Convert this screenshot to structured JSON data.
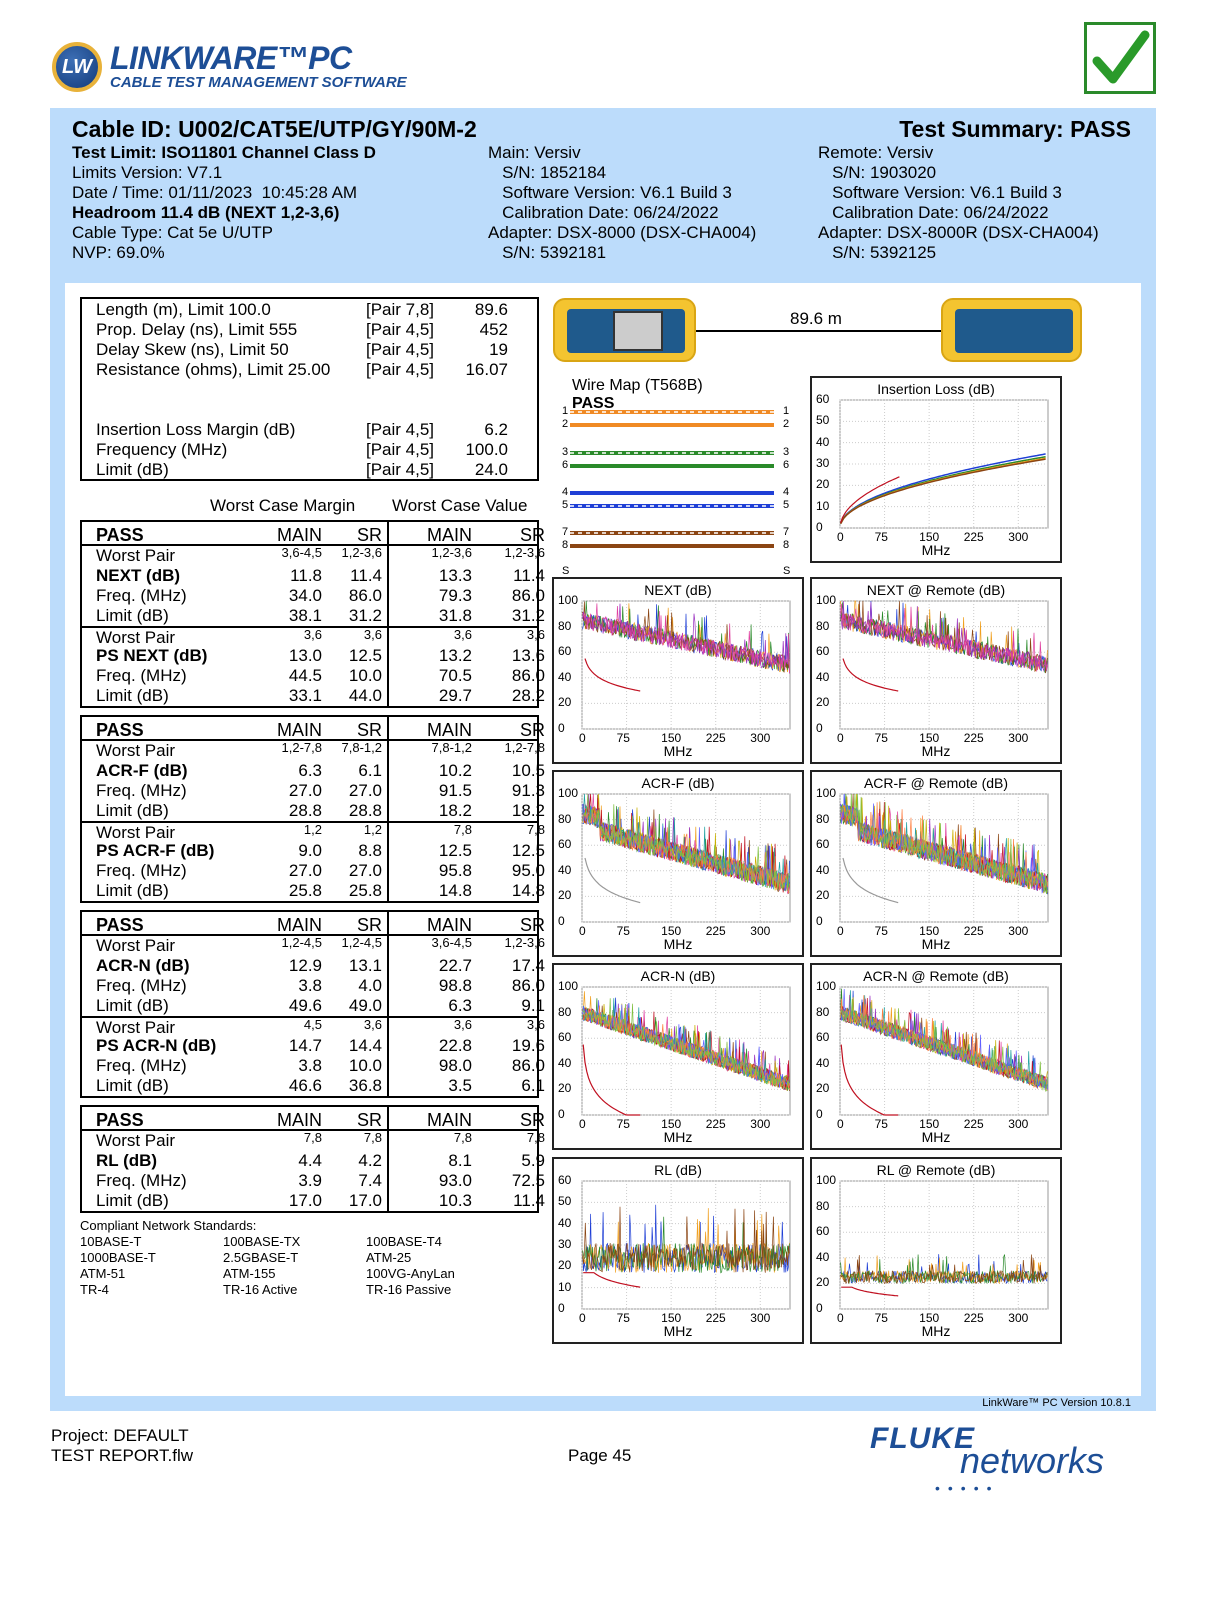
{
  "header": {
    "logo_mark": "LW",
    "logo_title": "LINKWARE™PC",
    "logo_subtitle": "CABLE TEST MANAGEMENT SOFTWARE",
    "status_icon": "check-mark-icon",
    "status_color": "#2a8a2a"
  },
  "summary": {
    "cable_id": "Cable ID: U002/CAT5E/UTP/GY/90M-2",
    "test_summary": "Test Summary: PASS",
    "left": [
      "Test Limit: ISO11801 Channel Class D",
      "Limits Version: V7.1",
      "Date / Time: 01/11/2023  10:45:28 AM",
      "Headroom 11.4 dB (NEXT 1,2-3,6)",
      "Cable Type: Cat 5e U/UTP",
      "NVP: 69.0%"
    ],
    "main": [
      "Main: Versiv",
      "   S/N: 1852184",
      "   Software Version: V6.1 Build 3",
      "   Calibration Date: 06/24/2022",
      "Adapter: DSX-8000 (DSX-CHA004)",
      "   S/N: 5392181"
    ],
    "remote": [
      "Remote: Versiv",
      "   S/N: 1903020",
      "   Software Version: V6.1 Build 3",
      "   Calibration Date: 06/24/2022",
      "Adapter: DSX-8000R (DSX-CHA004)",
      "   S/N: 5392125"
    ]
  },
  "measurements": [
    {
      "label": "Length (m), Limit 100.0",
      "pair": "[Pair 7,8]",
      "value": "89.6"
    },
    {
      "label": "Prop. Delay (ns), Limit 555",
      "pair": "[Pair 4,5]",
      "value": "452"
    },
    {
      "label": "Delay Skew (ns), Limit 50",
      "pair": "[Pair 4,5]",
      "value": "19"
    },
    {
      "label": "Resistance (ohms), Limit 25.00",
      "pair": "[Pair 4,5]",
      "value": "16.07"
    },
    {
      "label": "Insertion Loss Margin (dB)",
      "pair": "[Pair 4,5]",
      "value": "6.2"
    },
    {
      "label": "Frequency (MHz)",
      "pair": "[Pair 4,5]",
      "value": "100.0"
    },
    {
      "label": "Limit (dB)",
      "pair": "[Pair 4,5]",
      "value": "24.0"
    }
  ],
  "table_headings": {
    "margin": "Worst Case Margin",
    "value": "Worst Case Value"
  },
  "tables": [
    {
      "status": "PASS",
      "cols": [
        "MAIN",
        "SR",
        "MAIN",
        "SR"
      ],
      "groups": [
        {
          "rows": [
            [
              "Worst Pair",
              "3,6-4,5",
              "1,2-3,6",
              "1,2-3,6",
              "1,2-3,6"
            ],
            [
              "NEXT (dB)",
              "11.8",
              "11.4",
              "13.3",
              "11.4"
            ],
            [
              "Freq. (MHz)",
              "34.0",
              "86.0",
              "79.3",
              "86.0"
            ],
            [
              "Limit (dB)",
              "38.1",
              "31.2",
              "31.8",
              "31.2"
            ]
          ]
        },
        {
          "rows": [
            [
              "Worst Pair",
              "3,6",
              "3,6",
              "3,6",
              "3,6"
            ],
            [
              "PS NEXT (dB)",
              "13.0",
              "12.5",
              "13.2",
              "13.6"
            ],
            [
              "Freq. (MHz)",
              "44.5",
              "10.0",
              "70.5",
              "86.0"
            ],
            [
              "Limit (dB)",
              "33.1",
              "44.0",
              "29.7",
              "28.2"
            ]
          ]
        }
      ]
    },
    {
      "status": "PASS",
      "cols": [
        "MAIN",
        "SR",
        "MAIN",
        "SR"
      ],
      "groups": [
        {
          "rows": [
            [
              "Worst Pair",
              "1,2-7,8",
              "7,8-1,2",
              "7,8-1,2",
              "1,2-7,8"
            ],
            [
              "ACR-F (dB)",
              "6.3",
              "6.1",
              "10.2",
              "10.5"
            ],
            [
              "Freq. (MHz)",
              "27.0",
              "27.0",
              "91.5",
              "91.3"
            ],
            [
              "Limit (dB)",
              "28.8",
              "28.8",
              "18.2",
              "18.2"
            ]
          ]
        },
        {
          "rows": [
            [
              "Worst Pair",
              "1,2",
              "1,2",
              "7,8",
              "7,8"
            ],
            [
              "PS ACR-F (dB)",
              "9.0",
              "8.8",
              "12.5",
              "12.5"
            ],
            [
              "Freq. (MHz)",
              "27.0",
              "27.0",
              "95.8",
              "95.0"
            ],
            [
              "Limit (dB)",
              "25.8",
              "25.8",
              "14.8",
              "14.8"
            ]
          ]
        }
      ]
    },
    {
      "status": "PASS",
      "cols": [
        "MAIN",
        "SR",
        "MAIN",
        "SR"
      ],
      "groups": [
        {
          "rows": [
            [
              "Worst Pair",
              "1,2-4,5",
              "1,2-4,5",
              "3,6-4,5",
              "1,2-3,6"
            ],
            [
              "ACR-N (dB)",
              "12.9",
              "13.1",
              "22.7",
              "17.4"
            ],
            [
              "Freq. (MHz)",
              "3.8",
              "4.0",
              "98.8",
              "86.0"
            ],
            [
              "Limit (dB)",
              "49.6",
              "49.0",
              "6.3",
              "9.1"
            ]
          ]
        },
        {
          "rows": [
            [
              "Worst Pair",
              "4,5",
              "3,6",
              "3,6",
              "3,6"
            ],
            [
              "PS ACR-N (dB)",
              "14.7",
              "14.4",
              "22.8",
              "19.6"
            ],
            [
              "Freq. (MHz)",
              "3.8",
              "10.0",
              "98.0",
              "86.0"
            ],
            [
              "Limit (dB)",
              "46.6",
              "36.8",
              "3.5",
              "6.1"
            ]
          ]
        }
      ]
    },
    {
      "status": "PASS",
      "cols": [
        "MAIN",
        "SR",
        "MAIN",
        "SR"
      ],
      "groups": [
        {
          "rows": [
            [
              "Worst Pair",
              "7,8",
              "7,8",
              "7,8",
              "7,8"
            ],
            [
              "RL (dB)",
              "4.4",
              "4.2",
              "8.1",
              "5.9"
            ],
            [
              "Freq. (MHz)",
              "3.9",
              "7.4",
              "93.0",
              "72.5"
            ],
            [
              "Limit (dB)",
              "17.0",
              "17.0",
              "10.3",
              "11.4"
            ]
          ]
        }
      ]
    }
  ],
  "standards": {
    "title": "Compliant Network Standards:",
    "items": [
      "10BASE-T",
      "100BASE-TX",
      "100BASE-T4",
      "1000BASE-T",
      "2.5GBASE-T",
      "ATM-25",
      "ATM-51",
      "ATM-155",
      "100VG-AnyLan",
      "TR-4",
      "TR-16 Active",
      "TR-16 Passive"
    ]
  },
  "link": {
    "length": "89.6 m"
  },
  "wiremap": {
    "title": "Wire Map (T568B)",
    "result": "PASS",
    "pins": [
      "1",
      "2",
      "3",
      "6",
      "4",
      "5",
      "7",
      "8"
    ],
    "shield": "S",
    "colors": {
      "orange": "#f08a24",
      "green": "#2a8a2a",
      "blue": "#1f3fd6",
      "brown": "#8b4513"
    }
  },
  "chart_data": [
    {
      "id": "il",
      "type": "line",
      "title": "Insertion Loss (dB)",
      "xlabel": "MHz",
      "xlim": [
        0,
        350
      ],
      "ylim": [
        0,
        60
      ],
      "x_ticks": [
        0,
        75,
        150,
        225,
        300
      ],
      "y_ticks": [
        0,
        10,
        20,
        30,
        40,
        50,
        60
      ]
    },
    {
      "id": "next",
      "type": "line",
      "title": "NEXT (dB)",
      "xlabel": "MHz",
      "xlim": [
        0,
        350
      ],
      "ylim": [
        0,
        100
      ],
      "x_ticks": [
        0,
        75,
        150,
        225,
        300
      ],
      "y_ticks": [
        0,
        20,
        40,
        60,
        80,
        100
      ]
    },
    {
      "id": "next_r",
      "type": "line",
      "title": "NEXT @ Remote (dB)",
      "xlabel": "MHz",
      "xlim": [
        0,
        350
      ],
      "ylim": [
        0,
        100
      ],
      "x_ticks": [
        0,
        75,
        150,
        225,
        300
      ],
      "y_ticks": [
        0,
        20,
        40,
        60,
        80,
        100
      ]
    },
    {
      "id": "acrf",
      "type": "line",
      "title": "ACR-F (dB)",
      "xlabel": "MHz",
      "xlim": [
        0,
        350
      ],
      "ylim": [
        0,
        100
      ],
      "x_ticks": [
        0,
        75,
        150,
        225,
        300
      ],
      "y_ticks": [
        0,
        20,
        40,
        60,
        80,
        100
      ]
    },
    {
      "id": "acrf_r",
      "type": "line",
      "title": "ACR-F @ Remote (dB)",
      "xlabel": "MHz",
      "xlim": [
        0,
        350
      ],
      "ylim": [
        0,
        100
      ],
      "x_ticks": [
        0,
        75,
        150,
        225,
        300
      ],
      "y_ticks": [
        0,
        20,
        40,
        60,
        80,
        100
      ]
    },
    {
      "id": "acrn",
      "type": "line",
      "title": "ACR-N (dB)",
      "xlabel": "MHz",
      "xlim": [
        0,
        350
      ],
      "ylim": [
        0,
        100
      ],
      "x_ticks": [
        0,
        75,
        150,
        225,
        300
      ],
      "y_ticks": [
        0,
        20,
        40,
        60,
        80,
        100
      ]
    },
    {
      "id": "acrn_r",
      "type": "line",
      "title": "ACR-N @ Remote (dB)",
      "xlabel": "MHz",
      "xlim": [
        0,
        350
      ],
      "ylim": [
        0,
        100
      ],
      "x_ticks": [
        0,
        75,
        150,
        225,
        300
      ],
      "y_ticks": [
        0,
        20,
        40,
        60,
        80,
        100
      ]
    },
    {
      "id": "rl",
      "type": "line",
      "title": "RL (dB)",
      "xlabel": "MHz",
      "xlim": [
        0,
        350
      ],
      "ylim": [
        0,
        60
      ],
      "x_ticks": [
        0,
        75,
        150,
        225,
        300
      ],
      "y_ticks": [
        0,
        10,
        20,
        30,
        40,
        50,
        60
      ]
    },
    {
      "id": "rl_r",
      "type": "line",
      "title": "RL @ Remote (dB)",
      "xlabel": "MHz",
      "xlim": [
        0,
        350
      ],
      "ylim": [
        0,
        100
      ],
      "x_ticks": [
        0,
        75,
        150,
        225,
        300
      ],
      "y_ticks": [
        0,
        20,
        40,
        60,
        80,
        100
      ]
    }
  ],
  "footer": {
    "version": "LinkWare™ PC Version 10.8.1",
    "project": "Project: DEFAULT",
    "file": "TEST REPORT.flw",
    "page": "Page 45",
    "brand_top": "FLUKE",
    "brand_bottom": "networks"
  }
}
